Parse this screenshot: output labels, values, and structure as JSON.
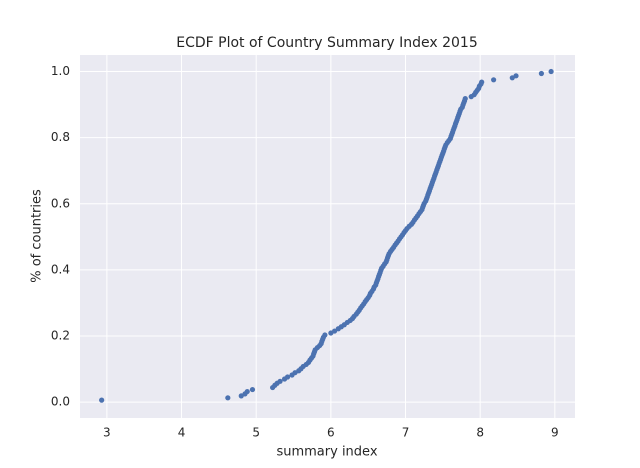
{
  "chart_data": {
    "type": "scatter",
    "title": "ECDF Plot of Country Summary Index 2015",
    "xlabel": "summary index",
    "ylabel": "% of countries",
    "color": "#4c72b0",
    "grid": true,
    "xlim": [
      2.64,
      9.27
    ],
    "ylim": [
      -0.048,
      1.05
    ],
    "xticks": [
      3,
      4,
      5,
      6,
      7,
      8,
      9
    ],
    "yticks": [
      {
        "value": 0,
        "label": "0.0"
      },
      0.2,
      0.4,
      0.6,
      0.8,
      {
        "value": 1,
        "label": "1.0"
      }
    ],
    "x": [
      2.93,
      4.62,
      4.8,
      4.85,
      4.88,
      4.95,
      5.22,
      5.25,
      5.28,
      5.32,
      5.38,
      5.42,
      5.48,
      5.52,
      5.57,
      5.6,
      5.63,
      5.67,
      5.7,
      5.72,
      5.74,
      5.76,
      5.77,
      5.78,
      5.79,
      5.82,
      5.85,
      5.87,
      5.88,
      5.89,
      5.9,
      5.92,
      6.0,
      6.05,
      6.1,
      6.14,
      6.18,
      6.22,
      6.26,
      6.29,
      6.31,
      6.34,
      6.36,
      6.38,
      6.4,
      6.42,
      6.44,
      6.46,
      6.48,
      6.5,
      6.52,
      6.53,
      6.55,
      6.57,
      6.58,
      6.6,
      6.61,
      6.62,
      6.63,
      6.64,
      6.65,
      6.66,
      6.67,
      6.68,
      6.7,
      6.72,
      6.74,
      6.75,
      6.76,
      6.77,
      6.78,
      6.8,
      6.82,
      6.84,
      6.86,
      6.88,
      6.9,
      6.92,
      6.94,
      6.96,
      6.98,
      7.0,
      7.02,
      7.05,
      7.08,
      7.1,
      7.12,
      7.14,
      7.16,
      7.18,
      7.2,
      7.22,
      7.23,
      7.24,
      7.25,
      7.27,
      7.28,
      7.29,
      7.3,
      7.31,
      7.32,
      7.33,
      7.34,
      7.35,
      7.36,
      7.37,
      7.38,
      7.39,
      7.4,
      7.41,
      7.42,
      7.43,
      7.44,
      7.45,
      7.46,
      7.47,
      7.48,
      7.49,
      7.5,
      7.51,
      7.52,
      7.53,
      7.54,
      7.56,
      7.58,
      7.6,
      7.61,
      7.62,
      7.63,
      7.64,
      7.65,
      7.66,
      7.67,
      7.68,
      7.69,
      7.7,
      7.71,
      7.72,
      7.73,
      7.74,
      7.76,
      7.77,
      7.78,
      7.79,
      7.8,
      7.88,
      7.92,
      7.94,
      7.96,
      7.98,
      7.99,
      8.01,
      8.02,
      8.18,
      8.43,
      8.48,
      8.82,
      8.95
    ],
    "values": [
      0.006,
      0.013,
      0.019,
      0.025,
      0.032,
      0.038,
      0.044,
      0.051,
      0.057,
      0.063,
      0.07,
      0.076,
      0.082,
      0.089,
      0.095,
      0.101,
      0.108,
      0.114,
      0.12,
      0.127,
      0.133,
      0.139,
      0.146,
      0.152,
      0.158,
      0.165,
      0.171,
      0.177,
      0.184,
      0.19,
      0.196,
      0.203,
      0.209,
      0.215,
      0.222,
      0.228,
      0.234,
      0.241,
      0.247,
      0.253,
      0.259,
      0.266,
      0.272,
      0.278,
      0.285,
      0.291,
      0.297,
      0.304,
      0.31,
      0.316,
      0.323,
      0.329,
      0.335,
      0.342,
      0.348,
      0.354,
      0.361,
      0.367,
      0.373,
      0.38,
      0.386,
      0.392,
      0.399,
      0.405,
      0.411,
      0.418,
      0.424,
      0.43,
      0.437,
      0.443,
      0.449,
      0.456,
      0.462,
      0.468,
      0.475,
      0.481,
      0.487,
      0.494,
      0.5,
      0.506,
      0.513,
      0.519,
      0.525,
      0.532,
      0.538,
      0.544,
      0.551,
      0.557,
      0.563,
      0.57,
      0.576,
      0.582,
      0.589,
      0.595,
      0.601,
      0.608,
      0.614,
      0.62,
      0.627,
      0.633,
      0.639,
      0.646,
      0.652,
      0.658,
      0.665,
      0.671,
      0.677,
      0.684,
      0.69,
      0.696,
      0.703,
      0.709,
      0.715,
      0.722,
      0.728,
      0.734,
      0.741,
      0.747,
      0.753,
      0.759,
      0.766,
      0.772,
      0.778,
      0.785,
      0.791,
      0.797,
      0.804,
      0.81,
      0.816,
      0.823,
      0.829,
      0.835,
      0.842,
      0.848,
      0.854,
      0.861,
      0.867,
      0.873,
      0.88,
      0.886,
      0.892,
      0.899,
      0.905,
      0.911,
      0.918,
      0.924,
      0.93,
      0.937,
      0.943,
      0.949,
      0.956,
      0.962,
      0.968,
      0.975,
      0.981,
      0.987,
      0.994,
      1.0
    ]
  }
}
